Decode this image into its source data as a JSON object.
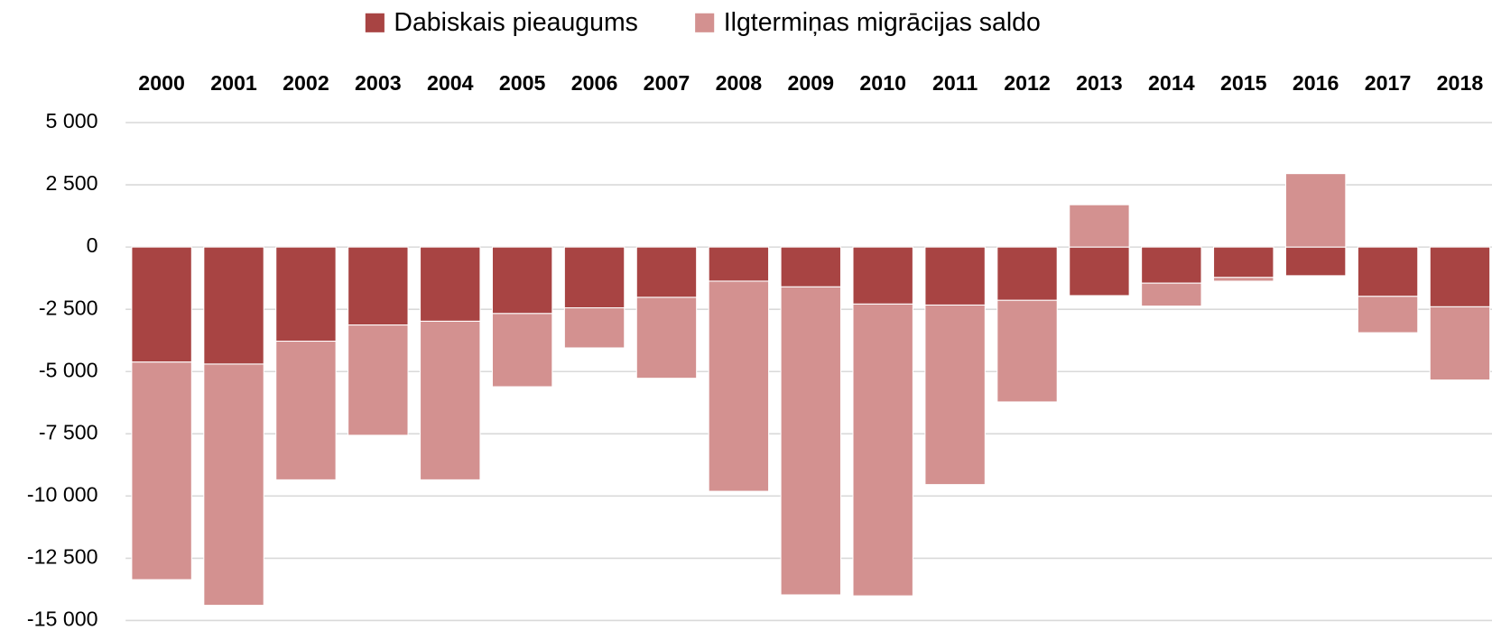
{
  "chart_data": {
    "type": "bar",
    "stacked": true,
    "categories": [
      "2000",
      "2001",
      "2002",
      "2003",
      "2004",
      "2005",
      "2006",
      "2007",
      "2008",
      "2009",
      "2010",
      "2011",
      "2012",
      "2013",
      "2014",
      "2015",
      "2016",
      "2017",
      "2018"
    ],
    "series": [
      {
        "name": "Dabiskais pieaugums",
        "color": "#a84443",
        "values": [
          -4620,
          -4700,
          -3780,
          -3130,
          -2980,
          -2670,
          -2440,
          -2020,
          -1370,
          -1600,
          -2290,
          -2330,
          -2140,
          -1950,
          -1450,
          -1220,
          -1150,
          -1980,
          -2400
        ]
      },
      {
        "name": "Ilgtermiņas migrācijas saldo",
        "color": "#d39190",
        "values": [
          -8740,
          -9690,
          -5570,
          -4430,
          -6370,
          -2940,
          -1610,
          -3250,
          -8440,
          -12370,
          -11720,
          -7210,
          -4080,
          1700,
          -920,
          -150,
          2950,
          -1460,
          -2940
        ]
      }
    ],
    "ylim": [
      -15000,
      5000
    ],
    "yticks": [
      {
        "value": -15000,
        "label": "-15 000"
      },
      {
        "value": -12500,
        "label": "-12 500"
      },
      {
        "value": -10000,
        "label": "-10 000"
      },
      {
        "value": -7500,
        "label": "-7 500"
      },
      {
        "value": -5000,
        "label": "-5 000"
      },
      {
        "value": -2500,
        "label": "-2 500"
      },
      0,
      {
        "value": 2500,
        "label": "2 500"
      },
      {
        "value": 5000,
        "label": "5 000"
      }
    ],
    "grid": true,
    "legend": "top"
  }
}
